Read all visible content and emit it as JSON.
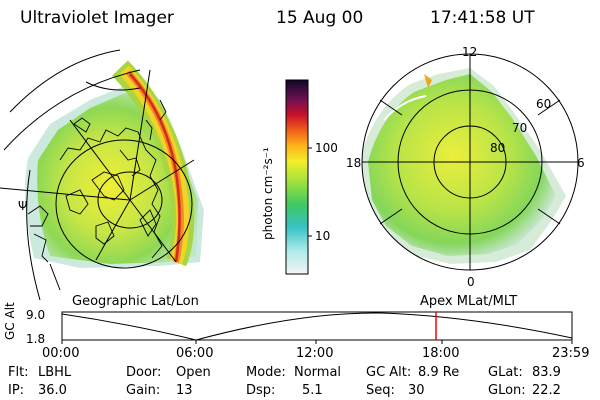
{
  "header": {
    "title": "Ultraviolet Imager",
    "date": "15 Aug 00",
    "time": "17:41:58 UT"
  },
  "colorbar": {
    "unit_label": "photon cm⁻²s⁻¹",
    "ticks": [
      "100",
      "10"
    ]
  },
  "geo_map": {
    "caption": "Geographic Lat/Lon",
    "symbol": "Ψ"
  },
  "polar_map": {
    "caption": "Apex MLat/MLT",
    "mlt_labels": {
      "top": "12",
      "left": "18",
      "right": "6",
      "bottom": "0"
    },
    "lat_labels": [
      "60",
      "70",
      "80"
    ]
  },
  "alt_plot": {
    "ylabel": "GC Alt",
    "ymax_label": "9.0",
    "ymin_label": "1.8",
    "x_ticks": [
      "00:00",
      "06:00",
      "12:00",
      "18:00",
      "23:59"
    ],
    "marker_color": "#ff0000"
  },
  "status": {
    "flt_label": "Flt:",
    "flt_value": "LBHL",
    "ip_label": "IP:",
    "ip_value": "36.0",
    "door_label": "Door:",
    "door_value": "Open",
    "gain_label": "Gain:",
    "gain_value": "13",
    "mode_label": "Mode:",
    "mode_value": "Normal",
    "dsp_label": "Dsp:",
    "dsp_value": "5.1",
    "gcalt_label": "GC Alt:",
    "gcalt_value": "8.9 Re",
    "seq_label": "Seq:",
    "seq_value": "30",
    "glat_label": "GLat:",
    "glat_value": "83.9",
    "glon_label": "GLon:",
    "glon_value": "22.2"
  }
}
